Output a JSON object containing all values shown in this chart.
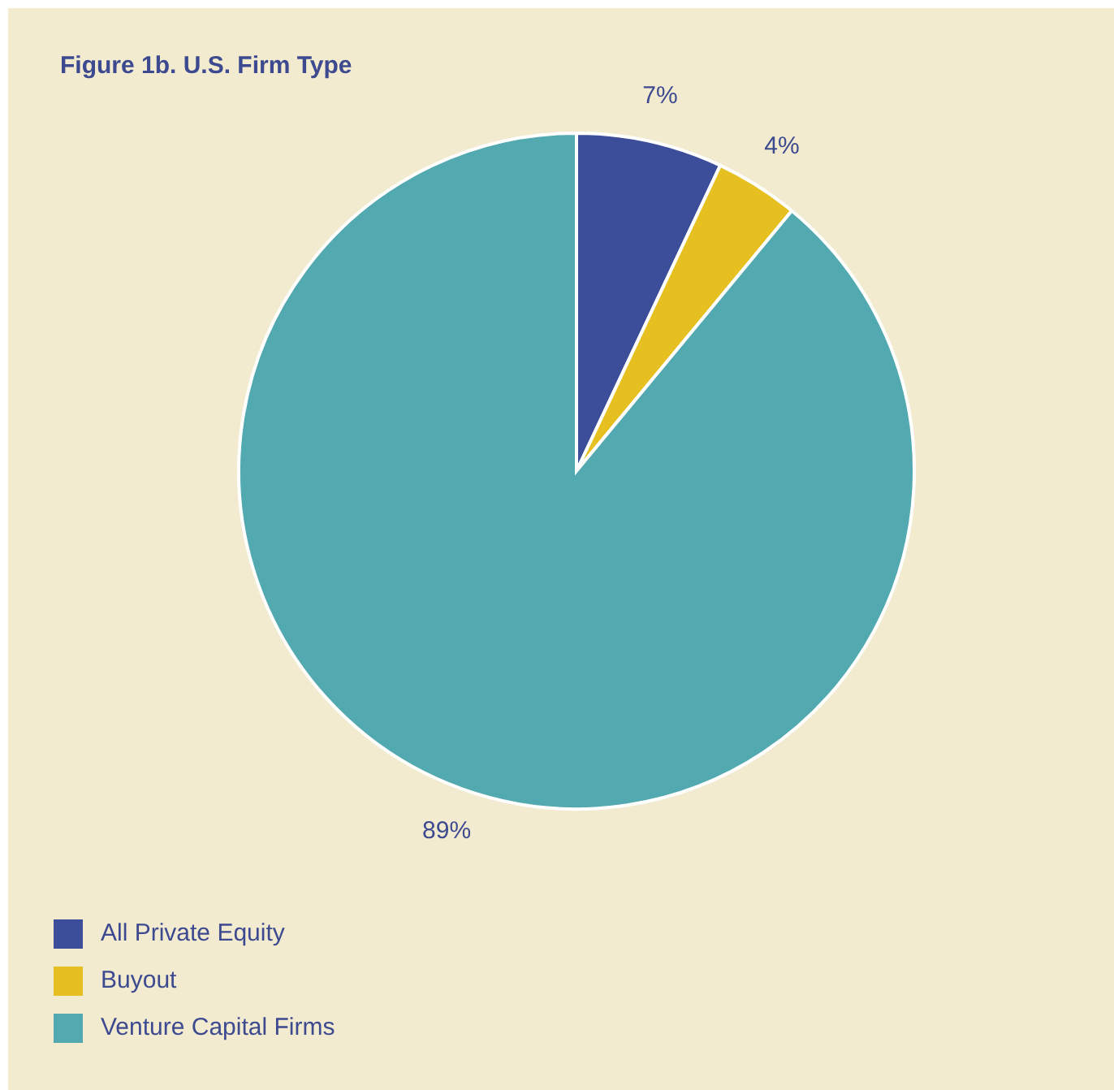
{
  "chart_data": {
    "type": "pie",
    "title": "Figure 1b. U.S. Firm Type",
    "categories": [
      "All Private Equity",
      "Buyout",
      "Venture Capital Firms"
    ],
    "values": [
      7,
      4,
      89
    ],
    "colors": [
      "#3c4d9a",
      "#e6c020",
      "#52a9b0"
    ],
    "value_labels": [
      "7%",
      "4%",
      "89%"
    ],
    "legend": "bottom left"
  }
}
